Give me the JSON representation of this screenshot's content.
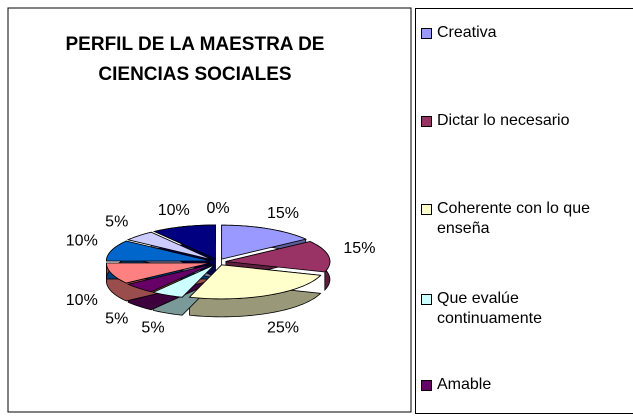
{
  "chart_data": {
    "type": "pie3d",
    "title": "PERFIL DE LA MAESTRA DE CIENCIAS SOCIALES",
    "categories": [
      "Creativa",
      "Dictar lo necesario",
      "Coherente con lo que enseña",
      "Que evalúe continuamente",
      "Amable",
      null,
      null,
      null,
      null,
      null
    ],
    "values": [
      15,
      15,
      25,
      5,
      5,
      10,
      10,
      5,
      10,
      0
    ],
    "value_labels": [
      "15%",
      "15%",
      "25%",
      "5%",
      "5%",
      "10%",
      "10%",
      "5%",
      "10%",
      "0%"
    ],
    "colors": [
      "#9999ff",
      "#993366",
      "#ffffcc",
      "#ccffff",
      "#660066",
      "#ff8080",
      "#0066cc",
      "#ccccff",
      "#000080",
      "#ff00ff"
    ]
  }
}
